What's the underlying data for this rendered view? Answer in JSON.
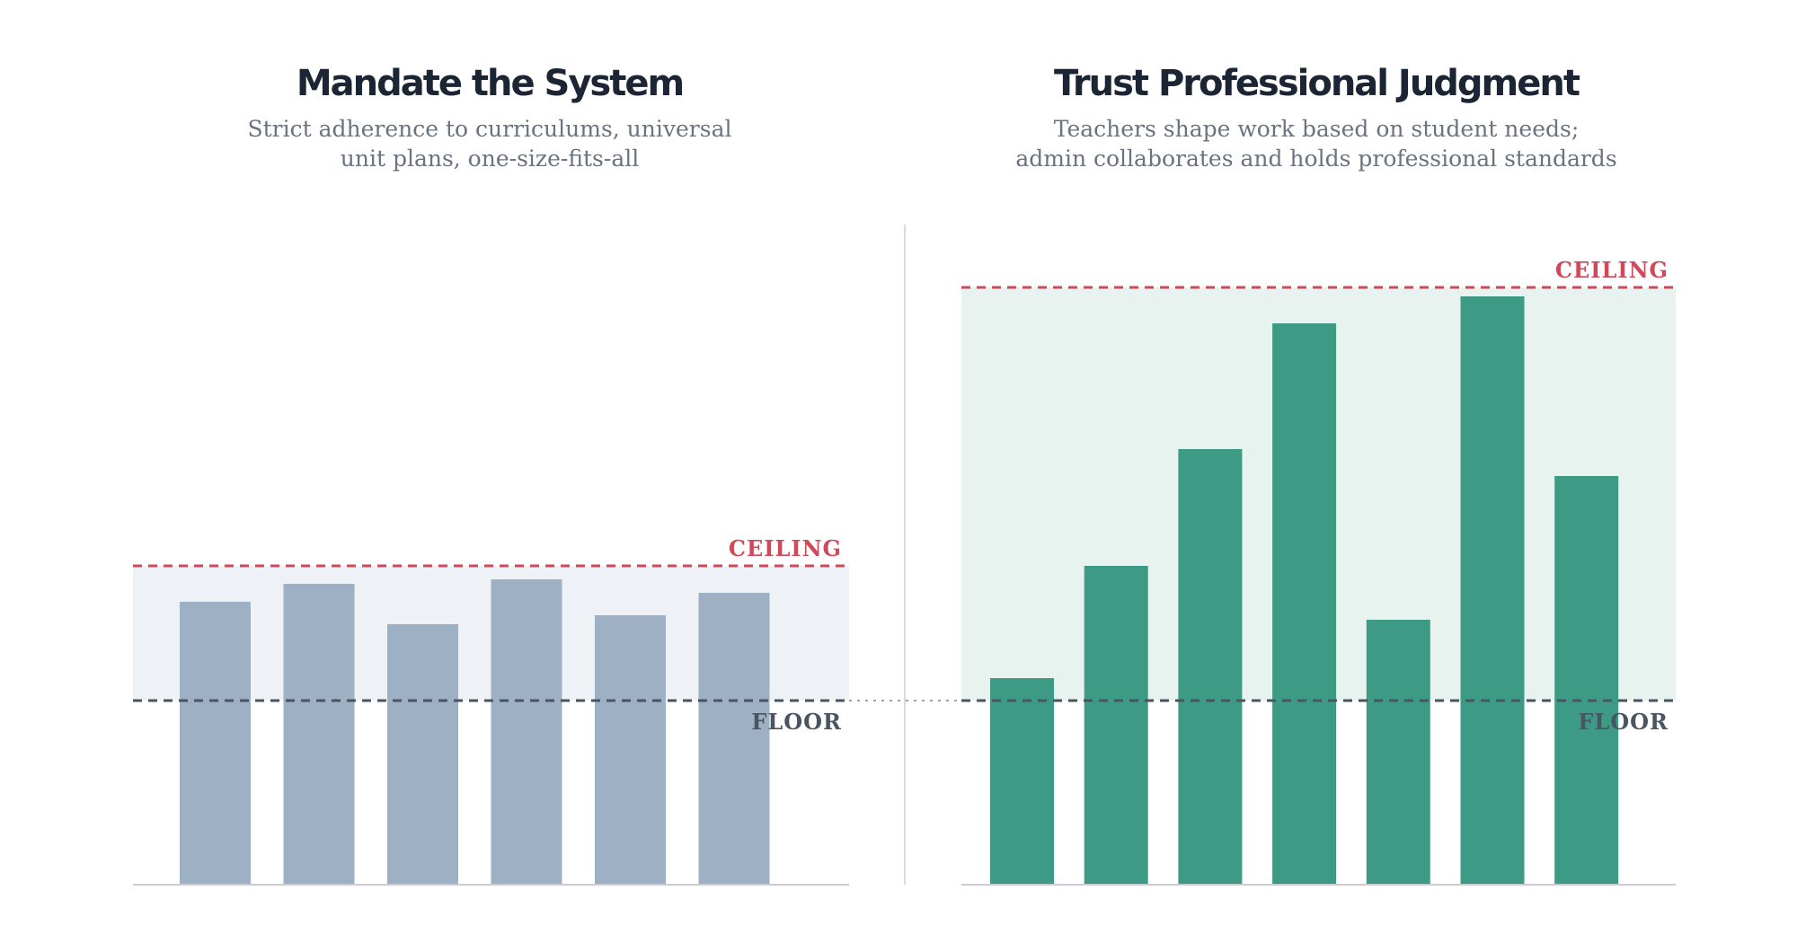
{
  "colors": {
    "left_bar": "#9db0c4",
    "left_band": "#eef2f6",
    "right_bar": "#3d9a85",
    "right_band": "#e8f3ef",
    "ceiling": "#d0495a",
    "floor": "#4a5563",
    "title": "#1c2533",
    "subtitle": "#6b7280",
    "divider": "#d9dde3",
    "axis": "#c9cdd3",
    "connector": "#9aa2ab"
  },
  "chart_data": [
    {
      "type": "bar",
      "title": "Mandate the System",
      "subtitle_lines": [
        "Strict adherence to curriculums, universal",
        "unit plans, one-size-fits-all"
      ],
      "values": [
        63,
        67,
        58,
        68,
        60,
        65
      ],
      "ceiling": 71,
      "floor": 41,
      "ceiling_label": "CEILING",
      "floor_label": "FLOOR",
      "ylim": [
        0,
        148
      ],
      "xlabel": "",
      "ylabel": "",
      "grid": false
    },
    {
      "type": "bar",
      "title": "Trust Professional Judgment",
      "subtitle_lines": [
        "Teachers shape work based on student needs;",
        "admin collaborates and holds professional standards"
      ],
      "values": [
        46,
        71,
        97,
        125,
        59,
        131,
        91
      ],
      "ceiling": 133,
      "floor": 41,
      "ceiling_label": "CEILING",
      "floor_label": "FLOOR",
      "ylim": [
        0,
        148
      ],
      "xlabel": "",
      "ylabel": "",
      "grid": false
    }
  ]
}
